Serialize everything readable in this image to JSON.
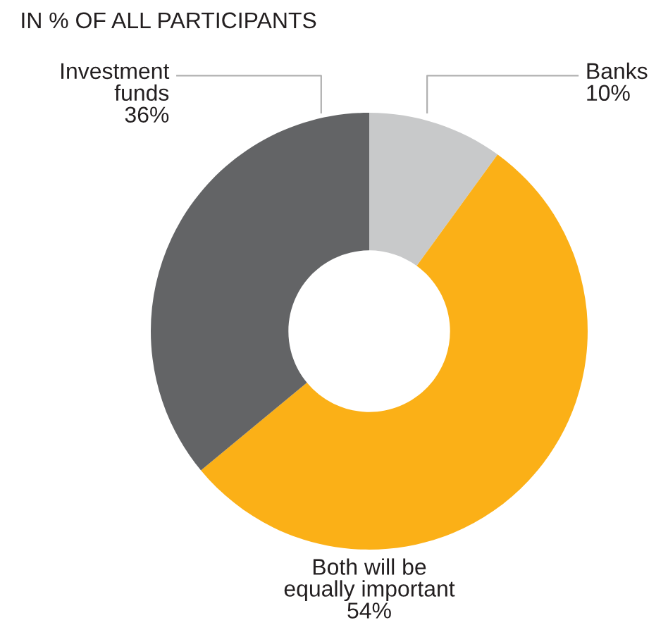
{
  "chart_data": {
    "type": "donut",
    "title": "IN % OF ALL PARTICIPANTS",
    "categories": [
      "Banks",
      "Both will be\nequally important",
      "Investment\nfunds"
    ],
    "values": [
      10,
      54,
      36
    ],
    "value_labels": [
      "10%",
      "54%",
      "36%"
    ],
    "colors": [
      "#c8c9ca",
      "#fbb017",
      "#636466"
    ]
  }
}
